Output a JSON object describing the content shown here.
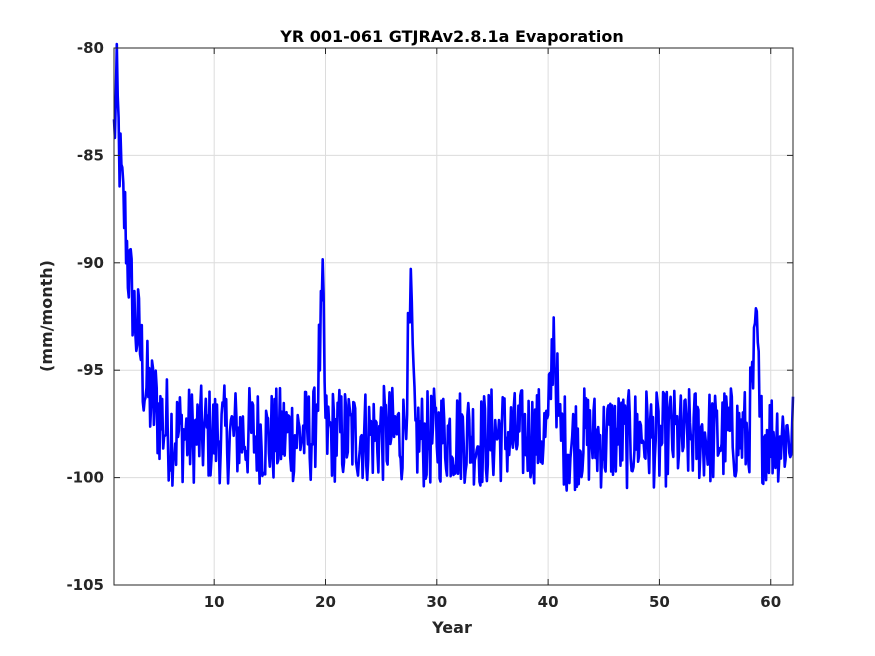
{
  "chart_data": {
    "type": "line",
    "title": "YR 001-061 GTJRAv2.8.1a Evaporation",
    "xlabel": "Year",
    "ylabel": "(mm/month)",
    "xlim": [
      1,
      62
    ],
    "ylim": [
      -105,
      -80
    ],
    "xticks": [
      10,
      20,
      30,
      40,
      50,
      60
    ],
    "yticks": [
      -105,
      -100,
      -95,
      -90,
      -85,
      -80
    ],
    "xtick_labels": [
      "10",
      "20",
      "30",
      "40",
      "50",
      "60"
    ],
    "ytick_labels": [
      "-105",
      "-100",
      "-95",
      "-90",
      "-85",
      "-80"
    ],
    "grid": true,
    "line_color": "#0000ff",
    "series": [
      {
        "x": [
          1,
          1.25,
          1.5,
          1.75,
          2,
          2.25,
          2.5,
          2.75,
          3,
          3.25,
          3.5,
          3.75,
          4,
          4.5,
          5,
          5.5,
          6,
          6.5,
          7,
          7.5,
          8,
          9,
          10,
          11,
          12,
          13,
          14,
          15,
          16,
          17,
          18,
          19,
          19.8,
          20,
          21,
          22,
          23,
          24,
          25,
          26,
          27,
          27.7,
          28,
          29,
          30,
          31,
          32,
          33,
          34,
          35,
          36,
          37,
          38,
          39,
          40,
          40.5,
          41,
          42,
          43,
          44,
          45,
          46,
          47,
          48,
          49,
          50,
          51,
          52,
          53,
          54,
          55,
          56,
          57,
          58,
          58.8,
          59,
          60,
          61,
          62
        ],
        "y": [
          -84,
          -82,
          -85,
          -87,
          -88,
          -90,
          -91,
          -92,
          -93,
          -93.5,
          -94.5,
          -95.5,
          -96,
          -96.5,
          -97,
          -97.5,
          -97.8,
          -98,
          -98,
          -98,
          -98,
          -98,
          -98,
          -98,
          -98,
          -98,
          -98,
          -98.2,
          -98,
          -98,
          -98,
          -98,
          -91.7,
          -98,
          -98,
          -98,
          -98,
          -98,
          -98,
          -98,
          -98,
          -92.2,
          -98,
          -98.3,
          -98,
          -98,
          -98,
          -98,
          -98.3,
          -98,
          -98,
          -98.2,
          -98,
          -98,
          -98,
          -93,
          -98,
          -98.5,
          -98,
          -98.2,
          -98.3,
          -98,
          -98.3,
          -98,
          -98,
          -98.4,
          -98,
          -98.3,
          -98,
          -98,
          -98.2,
          -98,
          -98,
          -98.1,
          -93,
          -98,
          -98,
          -98,
          -98
        ]
      }
    ]
  }
}
